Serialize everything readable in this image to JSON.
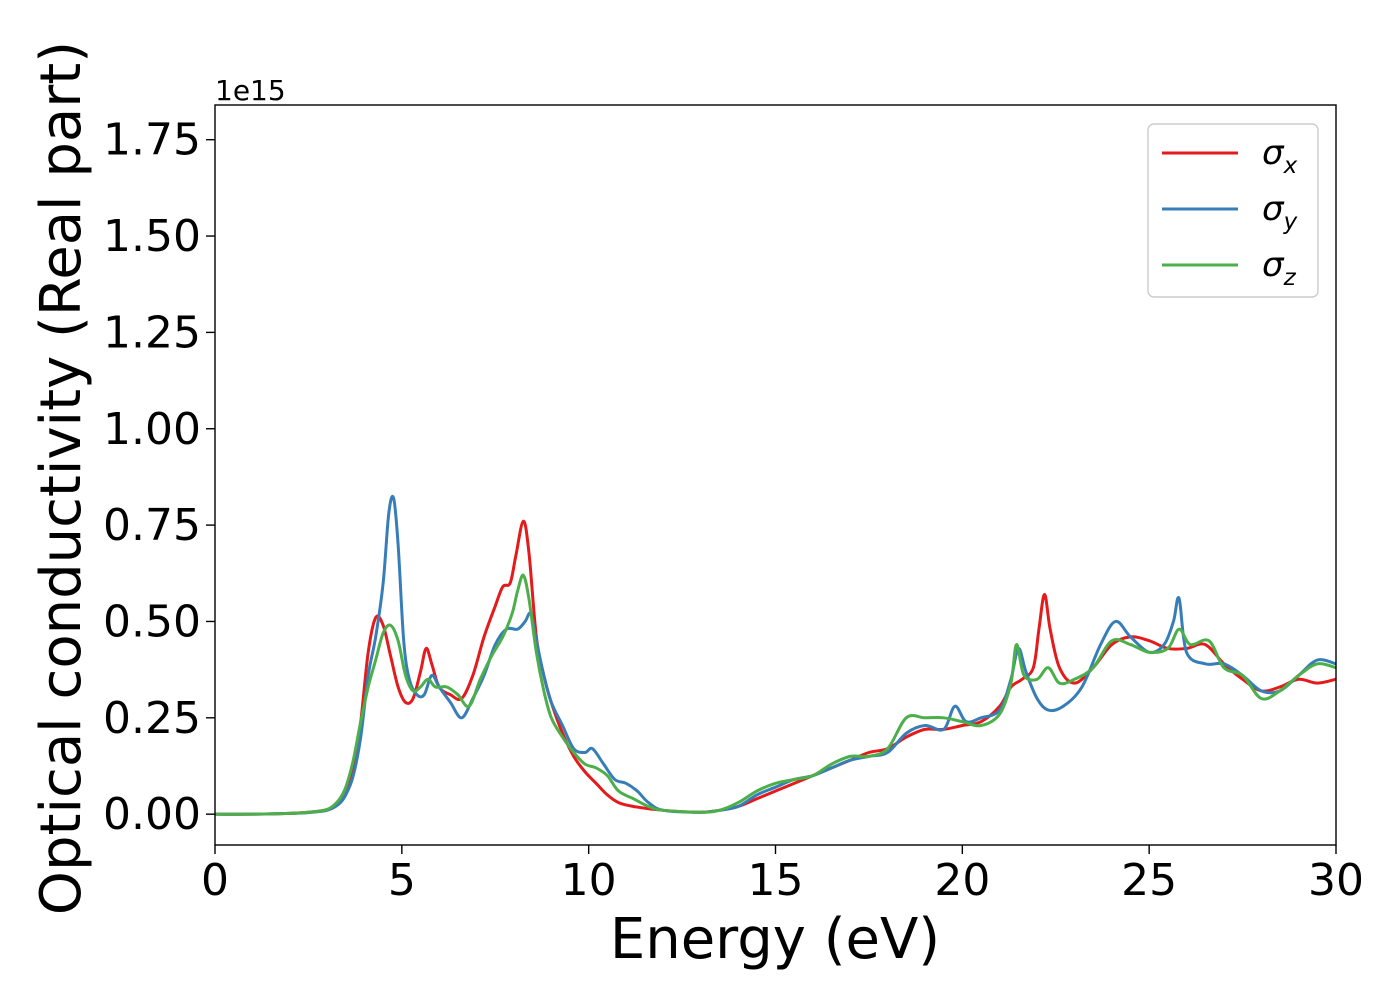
{
  "chart_data": {
    "type": "line",
    "xlabel": "Energy (eV)",
    "ylabel": "Optical conductivity (Real part)",
    "offset_text": "1e15",
    "xlim": [
      0,
      30
    ],
    "ylim": [
      -0.08,
      1.84
    ],
    "xticks": [
      {
        "value": 0,
        "label": "0"
      },
      {
        "value": 5,
        "label": "5"
      },
      {
        "value": 10,
        "label": "10"
      },
      {
        "value": 15,
        "label": "15"
      },
      {
        "value": 20,
        "label": "20"
      },
      {
        "value": 25,
        "label": "25"
      },
      {
        "value": 30,
        "label": "30"
      }
    ],
    "yticks": [
      {
        "value": 0.0,
        "label": "0.00"
      },
      {
        "value": 0.25,
        "label": "0.25"
      },
      {
        "value": 0.5,
        "label": "0.50"
      },
      {
        "value": 0.75,
        "label": "0.75"
      },
      {
        "value": 1.0,
        "label": "1.00"
      },
      {
        "value": 1.25,
        "label": "1.25"
      },
      {
        "value": 1.5,
        "label": "1.50"
      },
      {
        "value": 1.75,
        "label": "1.75"
      }
    ],
    "grid": false,
    "legend_position": "top-right",
    "series": [
      {
        "name": "σx",
        "symbol": "σ",
        "subscript": "x",
        "color": "#e41a1c",
        "points": [
          [
            0,
            0
          ],
          [
            1,
            0
          ],
          [
            2,
            0.002
          ],
          [
            2.5,
            0.005
          ],
          [
            3,
            0.012
          ],
          [
            3.3,
            0.03
          ],
          [
            3.5,
            0.06
          ],
          [
            3.7,
            0.12
          ],
          [
            3.9,
            0.24
          ],
          [
            4.1,
            0.42
          ],
          [
            4.3,
            0.51
          ],
          [
            4.5,
            0.49
          ],
          [
            4.7,
            0.41
          ],
          [
            4.9,
            0.33
          ],
          [
            5.1,
            0.29
          ],
          [
            5.3,
            0.3
          ],
          [
            5.5,
            0.37
          ],
          [
            5.65,
            0.43
          ],
          [
            5.8,
            0.39
          ],
          [
            6.0,
            0.33
          ],
          [
            6.3,
            0.31
          ],
          [
            6.6,
            0.3
          ],
          [
            6.9,
            0.36
          ],
          [
            7.2,
            0.46
          ],
          [
            7.5,
            0.54
          ],
          [
            7.7,
            0.59
          ],
          [
            7.9,
            0.6
          ],
          [
            8.05,
            0.67
          ],
          [
            8.25,
            0.76
          ],
          [
            8.4,
            0.68
          ],
          [
            8.6,
            0.46
          ],
          [
            8.8,
            0.36
          ],
          [
            9.0,
            0.29
          ],
          [
            9.3,
            0.21
          ],
          [
            9.6,
            0.15
          ],
          [
            9.9,
            0.11
          ],
          [
            10.2,
            0.08
          ],
          [
            10.5,
            0.05
          ],
          [
            10.8,
            0.03
          ],
          [
            11.2,
            0.02
          ],
          [
            12,
            0.01
          ],
          [
            13,
            0.005
          ],
          [
            13.5,
            0.01
          ],
          [
            14,
            0.02
          ],
          [
            14.5,
            0.04
          ],
          [
            15,
            0.06
          ],
          [
            15.5,
            0.08
          ],
          [
            16,
            0.1
          ],
          [
            16.5,
            0.12
          ],
          [
            17,
            0.14
          ],
          [
            17.5,
            0.16
          ],
          [
            18,
            0.17
          ],
          [
            18.5,
            0.2
          ],
          [
            19,
            0.22
          ],
          [
            19.5,
            0.22
          ],
          [
            20,
            0.23
          ],
          [
            20.5,
            0.24
          ],
          [
            21,
            0.28
          ],
          [
            21.3,
            0.33
          ],
          [
            21.6,
            0.35
          ],
          [
            21.9,
            0.38
          ],
          [
            22.05,
            0.48
          ],
          [
            22.2,
            0.57
          ],
          [
            22.35,
            0.48
          ],
          [
            22.6,
            0.38
          ],
          [
            23,
            0.34
          ],
          [
            23.5,
            0.38
          ],
          [
            24,
            0.44
          ],
          [
            24.5,
            0.46
          ],
          [
            25,
            0.45
          ],
          [
            25.5,
            0.43
          ],
          [
            26,
            0.43
          ],
          [
            26.5,
            0.44
          ],
          [
            27,
            0.39
          ],
          [
            27.5,
            0.35
          ],
          [
            28,
            0.32
          ],
          [
            28.5,
            0.33
          ],
          [
            29,
            0.35
          ],
          [
            29.5,
            0.34
          ],
          [
            30,
            0.35
          ]
        ]
      },
      {
        "name": "σy",
        "symbol": "σ",
        "subscript": "y",
        "color": "#377eb8",
        "points": [
          [
            0,
            0
          ],
          [
            1,
            0
          ],
          [
            2,
            0.002
          ],
          [
            2.5,
            0.004
          ],
          [
            3,
            0.01
          ],
          [
            3.3,
            0.025
          ],
          [
            3.5,
            0.05
          ],
          [
            3.7,
            0.1
          ],
          [
            3.9,
            0.2
          ],
          [
            4.1,
            0.36
          ],
          [
            4.3,
            0.46
          ],
          [
            4.5,
            0.6
          ],
          [
            4.65,
            0.78
          ],
          [
            4.78,
            0.82
          ],
          [
            4.9,
            0.7
          ],
          [
            5.05,
            0.45
          ],
          [
            5.2,
            0.35
          ],
          [
            5.4,
            0.31
          ],
          [
            5.6,
            0.31
          ],
          [
            5.8,
            0.36
          ],
          [
            6.0,
            0.33
          ],
          [
            6.3,
            0.29
          ],
          [
            6.6,
            0.25
          ],
          [
            6.9,
            0.3
          ],
          [
            7.2,
            0.36
          ],
          [
            7.5,
            0.44
          ],
          [
            7.8,
            0.48
          ],
          [
            8.1,
            0.48
          ],
          [
            8.3,
            0.5
          ],
          [
            8.45,
            0.52
          ],
          [
            8.6,
            0.45
          ],
          [
            8.8,
            0.36
          ],
          [
            9.0,
            0.29
          ],
          [
            9.3,
            0.23
          ],
          [
            9.6,
            0.17
          ],
          [
            9.9,
            0.16
          ],
          [
            10.1,
            0.17
          ],
          [
            10.4,
            0.13
          ],
          [
            10.7,
            0.09
          ],
          [
            11.0,
            0.08
          ],
          [
            11.3,
            0.06
          ],
          [
            11.6,
            0.03
          ],
          [
            12,
            0.01
          ],
          [
            13,
            0.005
          ],
          [
            13.5,
            0.01
          ],
          [
            14,
            0.02
          ],
          [
            14.5,
            0.05
          ],
          [
            15,
            0.07
          ],
          [
            15.5,
            0.09
          ],
          [
            16,
            0.1
          ],
          [
            16.5,
            0.12
          ],
          [
            17,
            0.14
          ],
          [
            17.5,
            0.15
          ],
          [
            18,
            0.16
          ],
          [
            18.5,
            0.21
          ],
          [
            19,
            0.23
          ],
          [
            19.5,
            0.22
          ],
          [
            19.8,
            0.28
          ],
          [
            20.1,
            0.24
          ],
          [
            20.5,
            0.25
          ],
          [
            21,
            0.27
          ],
          [
            21.3,
            0.35
          ],
          [
            21.5,
            0.43
          ],
          [
            21.7,
            0.37
          ],
          [
            22,
            0.3
          ],
          [
            22.3,
            0.27
          ],
          [
            22.7,
            0.28
          ],
          [
            23.2,
            0.33
          ],
          [
            23.7,
            0.44
          ],
          [
            24.1,
            0.5
          ],
          [
            24.5,
            0.46
          ],
          [
            25,
            0.42
          ],
          [
            25.4,
            0.44
          ],
          [
            25.65,
            0.5
          ],
          [
            25.8,
            0.56
          ],
          [
            26,
            0.42
          ],
          [
            26.5,
            0.39
          ],
          [
            27,
            0.39
          ],
          [
            27.5,
            0.36
          ],
          [
            28,
            0.32
          ],
          [
            28.5,
            0.32
          ],
          [
            29,
            0.36
          ],
          [
            29.5,
            0.4
          ],
          [
            30,
            0.39
          ]
        ]
      },
      {
        "name": "σz",
        "symbol": "σ",
        "subscript": "z",
        "color": "#4daf4a",
        "points": [
          [
            0,
            0
          ],
          [
            1,
            0
          ],
          [
            2,
            0.002
          ],
          [
            2.5,
            0.005
          ],
          [
            3,
            0.012
          ],
          [
            3.3,
            0.035
          ],
          [
            3.5,
            0.07
          ],
          [
            3.7,
            0.14
          ],
          [
            3.9,
            0.24
          ],
          [
            4.1,
            0.33
          ],
          [
            4.3,
            0.4
          ],
          [
            4.5,
            0.47
          ],
          [
            4.7,
            0.49
          ],
          [
            4.9,
            0.45
          ],
          [
            5.1,
            0.36
          ],
          [
            5.3,
            0.32
          ],
          [
            5.5,
            0.33
          ],
          [
            5.7,
            0.35
          ],
          [
            5.9,
            0.33
          ],
          [
            6.2,
            0.33
          ],
          [
            6.5,
            0.31
          ],
          [
            6.8,
            0.28
          ],
          [
            7.1,
            0.35
          ],
          [
            7.4,
            0.41
          ],
          [
            7.7,
            0.46
          ],
          [
            7.95,
            0.52
          ],
          [
            8.1,
            0.58
          ],
          [
            8.25,
            0.62
          ],
          [
            8.4,
            0.56
          ],
          [
            8.6,
            0.42
          ],
          [
            8.8,
            0.32
          ],
          [
            9.0,
            0.25
          ],
          [
            9.3,
            0.2
          ],
          [
            9.6,
            0.16
          ],
          [
            9.9,
            0.13
          ],
          [
            10.2,
            0.12
          ],
          [
            10.5,
            0.1
          ],
          [
            10.8,
            0.06
          ],
          [
            11.2,
            0.04
          ],
          [
            11.6,
            0.02
          ],
          [
            12,
            0.01
          ],
          [
            13,
            0.005
          ],
          [
            13.5,
            0.01
          ],
          [
            14,
            0.03
          ],
          [
            14.5,
            0.06
          ],
          [
            15,
            0.08
          ],
          [
            15.5,
            0.09
          ],
          [
            16,
            0.1
          ],
          [
            16.5,
            0.13
          ],
          [
            17,
            0.15
          ],
          [
            17.5,
            0.15
          ],
          [
            18,
            0.17
          ],
          [
            18.5,
            0.25
          ],
          [
            19,
            0.25
          ],
          [
            19.5,
            0.25
          ],
          [
            20,
            0.24
          ],
          [
            20.5,
            0.23
          ],
          [
            21,
            0.26
          ],
          [
            21.3,
            0.34
          ],
          [
            21.45,
            0.44
          ],
          [
            21.65,
            0.36
          ],
          [
            22,
            0.35
          ],
          [
            22.3,
            0.38
          ],
          [
            22.6,
            0.34
          ],
          [
            23,
            0.35
          ],
          [
            23.5,
            0.38
          ],
          [
            24,
            0.45
          ],
          [
            24.5,
            0.44
          ],
          [
            25,
            0.42
          ],
          [
            25.5,
            0.43
          ],
          [
            25.8,
            0.48
          ],
          [
            26.1,
            0.44
          ],
          [
            26.6,
            0.45
          ],
          [
            27,
            0.38
          ],
          [
            27.5,
            0.36
          ],
          [
            28,
            0.3
          ],
          [
            28.5,
            0.32
          ],
          [
            29,
            0.36
          ],
          [
            29.5,
            0.39
          ],
          [
            30,
            0.38
          ]
        ]
      }
    ]
  }
}
